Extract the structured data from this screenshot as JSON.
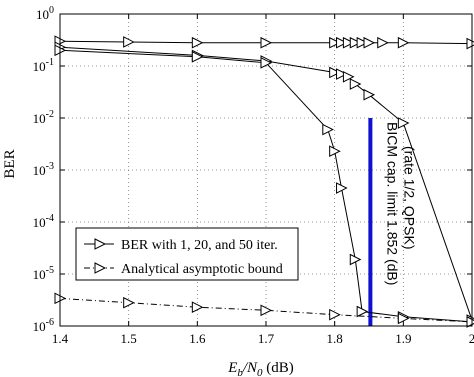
{
  "chart_data": {
    "type": "line",
    "xlabel": {
      "main": "E",
      "sub1": "b",
      "slash": "/N",
      "sub2": "0",
      "unit": " (dB)"
    },
    "ylabel": "BER",
    "xlim": [
      1.4,
      2.0
    ],
    "ylim": [
      1e-06,
      1
    ],
    "yscale": "log",
    "grid": true,
    "legend_position": "lower-left",
    "x_ticks": [
      {
        "value": 1.4,
        "label": "1.4"
      },
      {
        "value": 1.5,
        "label": "1.5"
      },
      {
        "value": 1.6,
        "label": "1.6"
      },
      {
        "value": 1.7,
        "label": "1.7"
      },
      {
        "value": 1.8,
        "label": "1.8"
      },
      {
        "value": 1.9,
        "label": "1.9"
      },
      {
        "value": 2.0,
        "label": "2"
      }
    ],
    "y_ticks": [
      {
        "value": 1.0,
        "base": "10",
        "exp": "0"
      },
      {
        "value": 0.1,
        "base": "10",
        "exp": "-1"
      },
      {
        "value": 0.01,
        "base": "10",
        "exp": "-2"
      },
      {
        "value": 0.001,
        "base": "10",
        "exp": "-3"
      },
      {
        "value": 0.0001,
        "base": "10",
        "exp": "-4"
      },
      {
        "value": 1e-05,
        "base": "10",
        "exp": "-5"
      },
      {
        "value": 1e-06,
        "base": "10",
        "exp": "-6"
      }
    ],
    "series": [
      {
        "name": "BER with 1, 20, and 50 iter.",
        "style": "solid",
        "marker": "triangle-right",
        "color": "#000000",
        "curves": [
          {
            "x": [
              1.4,
              1.5,
              1.6,
              1.7,
              1.8,
              1.81,
              1.82,
              1.83,
              1.84,
              1.85,
              1.87,
              1.9,
              2.0
            ],
            "y": [
              0.3,
              0.29,
              0.28,
              0.28,
              0.28,
              0.28,
              0.28,
              0.28,
              0.28,
              0.28,
              0.28,
              0.28,
              0.27
            ]
          },
          {
            "x": [
              1.4,
              1.6,
              1.7,
              1.8,
              1.81,
              1.82,
              1.83,
              1.85,
              1.9,
              2.0
            ],
            "y": [
              0.23,
              0.16,
              0.125,
              0.075,
              0.07,
              0.062,
              0.045,
              0.028,
              0.008,
              1.3e-06
            ]
          },
          {
            "x": [
              1.4,
              1.6,
              1.7,
              1.79,
              1.8,
              1.81,
              1.83,
              1.84,
              1.9,
              2.0
            ],
            "y": [
              0.2,
              0.15,
              0.115,
              0.006,
              0.0023,
              0.00045,
              1.9e-05,
              1.9e-06,
              1.5e-06,
              1.2e-06
            ]
          }
        ]
      },
      {
        "name": "Analytical asymptotic bound",
        "style": "dashdot",
        "marker": "triangle-right",
        "color": "#000000",
        "curves": [
          {
            "x": [
              1.4,
              1.5,
              1.6,
              1.7,
              1.8,
              1.9,
              2.0
            ],
            "y": [
              3.4e-06,
              2.8e-06,
              2.3e-06,
              2e-06,
              1.65e-06,
              1.4e-06,
              1.2e-06
            ]
          }
        ]
      }
    ],
    "annotation": {
      "line_x": 1.852,
      "line_y": [
        1e-06,
        0.01
      ],
      "line_color": "#1010d0",
      "text_line1": "BICM cap. limit 1.852 (dB)",
      "text_line2": "(rate 1/2, QPSK)"
    }
  }
}
